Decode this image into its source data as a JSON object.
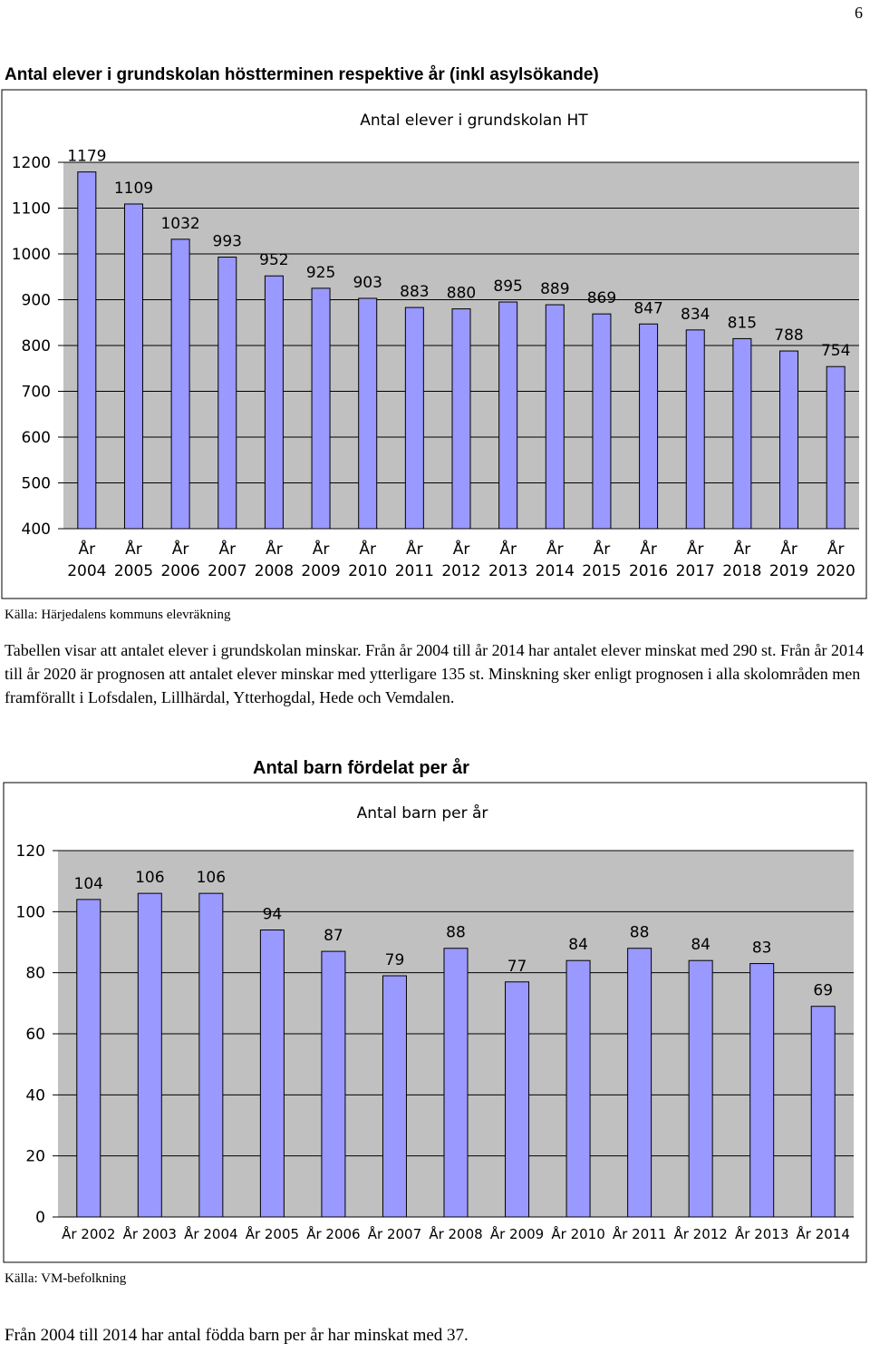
{
  "page_number": "6",
  "heading": "Antal elever i grundskolan höstterminen respektive år (inkl asylsökande)",
  "source1": "Källa: Härjedalens kommuns elevräkning",
  "paragraph": "Tabellen visar att antalet elever i grundskolan minskar. Från år 2004 till år 2014 har antalet elever minskat med 290 st. Från år 2014 till år 2020 är prognosen att antalet elever minskar med ytterligare 135 st. Minskning sker enligt prognosen i alla skolområden men framförallt i Lofsdalen, Lillhärdal, Ytterhogdal, Hede och Vemdalen.",
  "chart2_heading": "Antal barn fördelat per år",
  "source2": "Källa: VM-befolkning",
  "final_text": "Från 2004 till 2014 har antal födda barn per år har minskat med 37.",
  "chart_data": [
    {
      "type": "bar",
      "title": "Antal elever i grundskolan HT",
      "categories": [
        "År 2004",
        "År 2005",
        "År 2006",
        "År 2007",
        "År 2008",
        "År 2009",
        "År 2010",
        "År 2011",
        "År 2012",
        "År 2013",
        "År 2014",
        "År 2015",
        "År 2016",
        "År 2017",
        "År 2018",
        "År 2019",
        "År 2020"
      ],
      "values": [
        1179,
        1109,
        1032,
        993,
        952,
        925,
        903,
        883,
        880,
        895,
        889,
        869,
        847,
        834,
        815,
        788,
        754
      ],
      "yticks": [
        400,
        500,
        600,
        700,
        800,
        900,
        1000,
        1100,
        1200
      ],
      "ylim": [
        400,
        1200
      ],
      "grid": true,
      "bar_color": "#9999ff",
      "plot_bg": "#c0c0c0"
    },
    {
      "type": "bar",
      "title": "Antal barn per år",
      "categories": [
        "År 2002",
        "År 2003",
        "År 2004",
        "År 2005",
        "År 2006",
        "År 2007",
        "År 2008",
        "År 2009",
        "År 2010",
        "År 2011",
        "År 2012",
        "År 2013",
        "År 2014"
      ],
      "values": [
        104,
        106,
        106,
        94,
        87,
        79,
        88,
        77,
        84,
        88,
        84,
        83,
        69
      ],
      "yticks": [
        0,
        20,
        40,
        60,
        80,
        100,
        120
      ],
      "ylim": [
        0,
        120
      ],
      "grid": true,
      "bar_color": "#9999ff",
      "plot_bg": "#c0c0c0"
    }
  ]
}
